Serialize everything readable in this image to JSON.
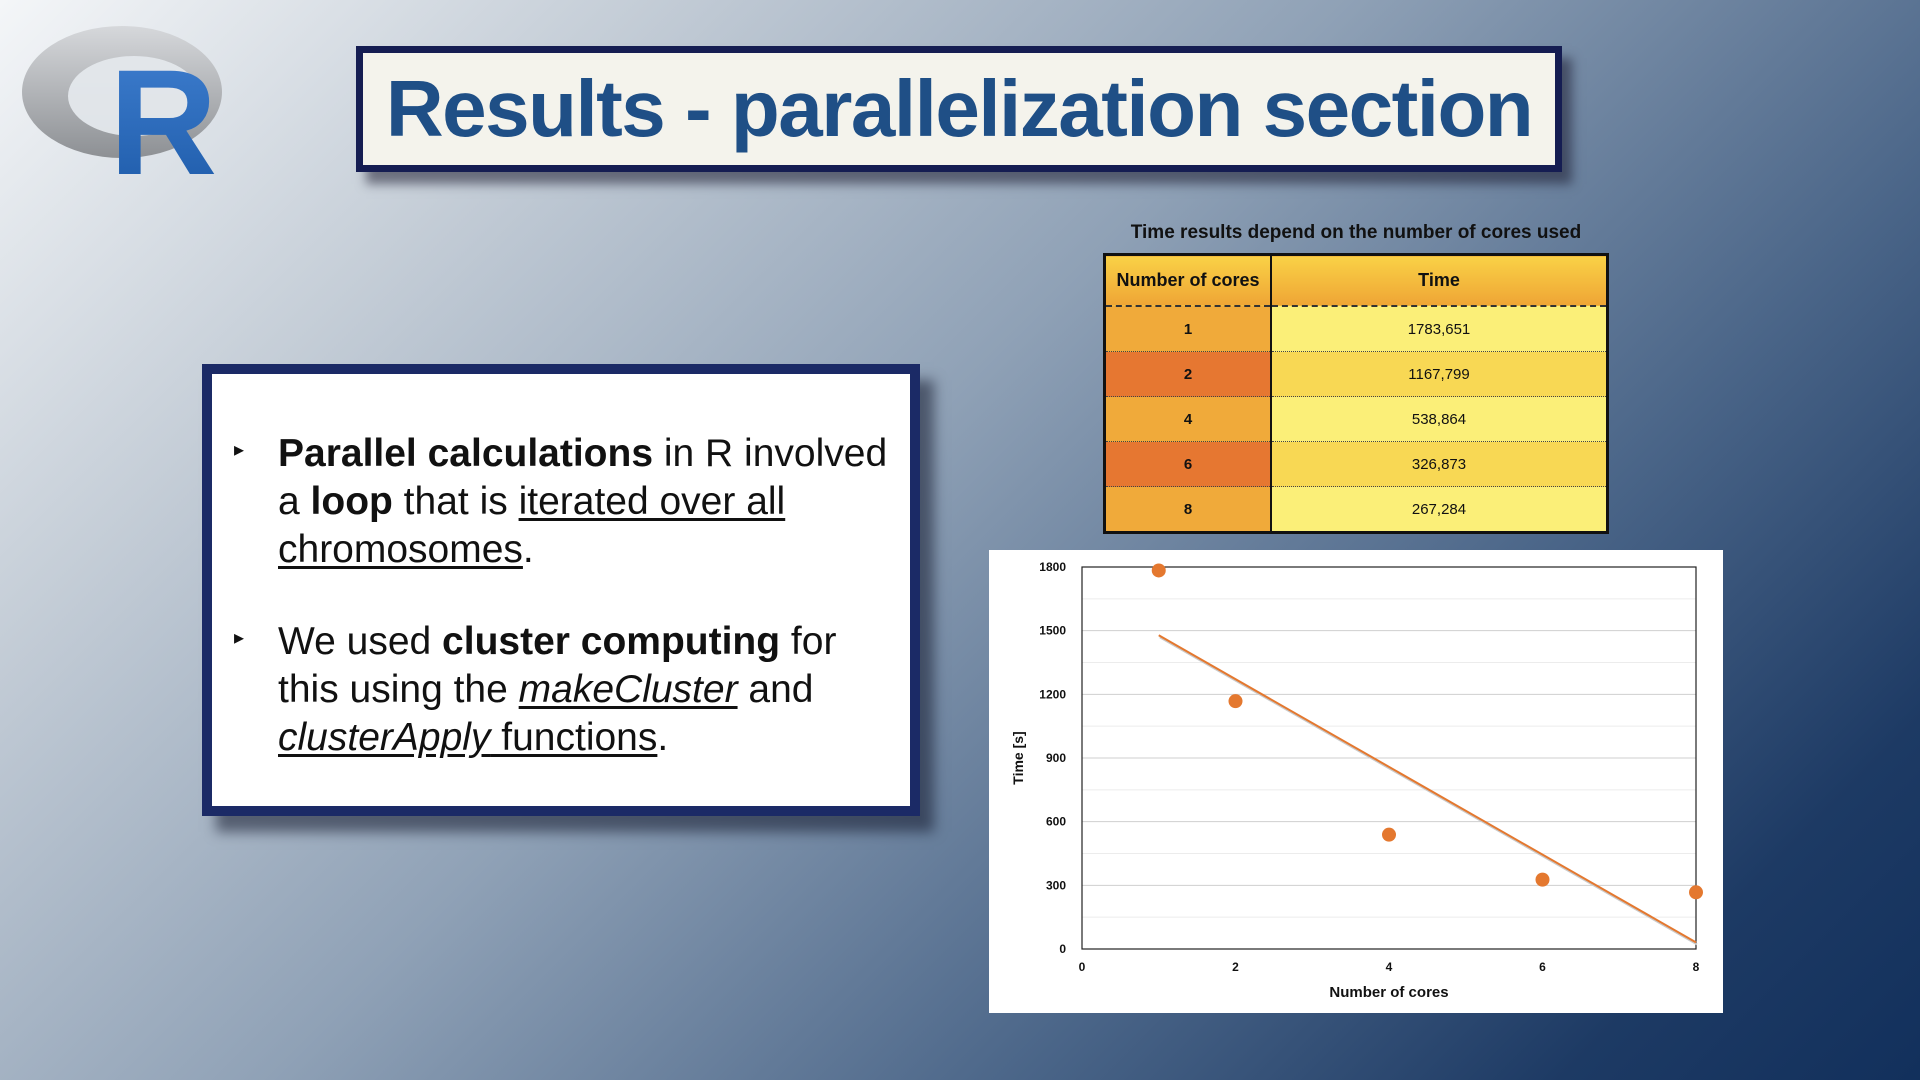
{
  "logo": {
    "letter": "R",
    "colors": {
      "ring": "#a9abae",
      "letter": "#2266b8"
    }
  },
  "title": "Results - parallelization section",
  "bullets": [
    {
      "parts": [
        {
          "t": "Parallel calculations",
          "s": "b"
        },
        {
          "t": " in R involved a ",
          "s": ""
        },
        {
          "t": "loop",
          "s": "b"
        },
        {
          "t": " that is ",
          "s": ""
        },
        {
          "t": "iterated over all chromosomes",
          "s": "u"
        },
        {
          "t": ".",
          "s": ""
        }
      ]
    },
    {
      "parts": [
        {
          "t": "We used ",
          "s": ""
        },
        {
          "t": "cluster computing",
          "s": "b"
        },
        {
          "t": " for this using the ",
          "s": ""
        },
        {
          "t": "makeCluster",
          "s": "iu"
        },
        {
          "t": " and ",
          "s": ""
        },
        {
          "t": "clusterApply",
          "s": "iu"
        },
        {
          "t": " functions",
          "s": "u"
        },
        {
          "t": ".",
          "s": ""
        }
      ]
    }
  ],
  "table": {
    "caption": "Time results depend on the number of cores used",
    "headers": [
      "Number of cores",
      "Time"
    ],
    "rows": [
      [
        "1",
        "1783,651"
      ],
      [
        "2",
        "1167,799"
      ],
      [
        "4",
        "538,864"
      ],
      [
        "6",
        "326,873"
      ],
      [
        "8",
        "267,284"
      ]
    ]
  },
  "chart_data": {
    "type": "scatter",
    "xlabel": "Number of cores",
    "ylabel": "Time [s]",
    "xlim": [
      0,
      8
    ],
    "ylim": [
      0,
      1800
    ],
    "xticks": [
      0,
      2,
      4,
      6,
      8
    ],
    "yticks": [
      0,
      300,
      600,
      900,
      1200,
      1500,
      1800
    ],
    "grid": true,
    "legend": "none",
    "series": [
      {
        "points": [
          [
            1,
            1783.651
          ],
          [
            2,
            1167.799
          ],
          [
            4,
            538.864
          ],
          [
            6,
            326.873
          ],
          [
            8,
            267.284
          ]
        ],
        "color": "#e4782f",
        "trendline": "linear"
      }
    ]
  }
}
